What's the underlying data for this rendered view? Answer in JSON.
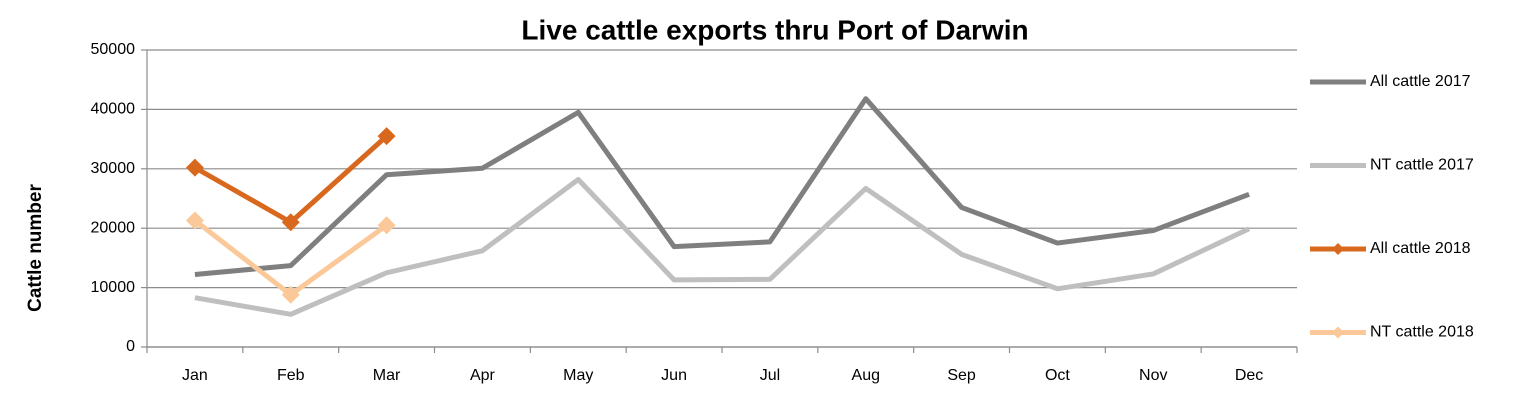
{
  "chart_data": {
    "type": "line",
    "title": "Live cattle exports thru Port of Darwin",
    "y_label": "Cattle number",
    "categories": [
      "Jan",
      "Feb",
      "Mar",
      "Apr",
      "May",
      "Jun",
      "Jul",
      "Aug",
      "Sep",
      "Oct",
      "Nov",
      "Dec"
    ],
    "series": [
      {
        "name": "All cattle 2017",
        "color": "#7f7f7f",
        "marker": "none",
        "values": [
          12200,
          13700,
          29000,
          30100,
          39500,
          16900,
          17700,
          41800,
          23500,
          17500,
          19600,
          25700
        ]
      },
      {
        "name": "NT cattle 2017",
        "color": "#bfbfbf",
        "marker": "none",
        "values": [
          8300,
          5500,
          12500,
          16200,
          28200,
          11300,
          11400,
          26700,
          15600,
          9800,
          12300,
          19900
        ]
      },
      {
        "name": "All cattle 2018",
        "color": "#d9681f",
        "marker": "diamond",
        "values": [
          30200,
          21000,
          35500,
          null,
          null,
          null,
          null,
          null,
          null,
          null,
          null,
          null
        ]
      },
      {
        "name": "NT cattle 2018",
        "color": "#fbc999",
        "marker": "diamond",
        "values": [
          21300,
          8800,
          20500,
          null,
          null,
          null,
          null,
          null,
          null,
          null,
          null,
          null
        ]
      }
    ],
    "ylim": [
      0,
      50000
    ],
    "yticks": [
      0,
      10000,
      20000,
      30000,
      40000,
      50000
    ],
    "grid": true,
    "legend": "right"
  }
}
